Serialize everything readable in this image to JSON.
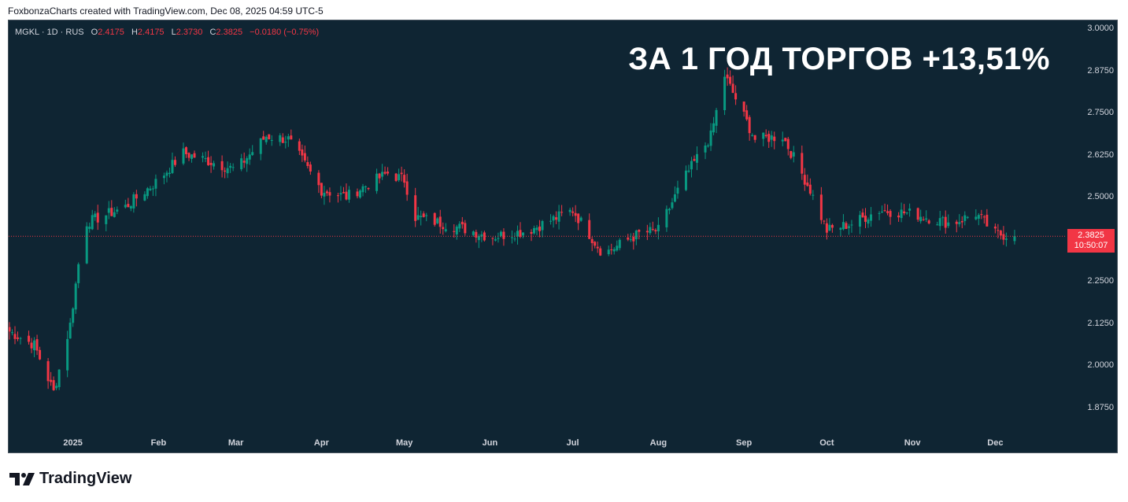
{
  "header": {
    "credit": "FoxbonzaCharts created with TradingView.com, Dec 08, 2025 04:59 UTC-5"
  },
  "legend": {
    "symbol": "MGKL · 1D · RUS",
    "open_label": "O",
    "open": "2.4175",
    "high_label": "H",
    "high": "2.4175",
    "low_label": "L",
    "low": "2.3730",
    "close_label": "C",
    "close": "2.3825",
    "change": "−0.0180 (−0.75%)"
  },
  "overlay_title": "ЗА 1 ГОД ТОРГОВ +13,51%",
  "last_price": {
    "price": "2.3825",
    "countdown": "10:50:07",
    "color": "#f23645"
  },
  "branding": {
    "logo_text": "TradingView"
  },
  "colors": {
    "background": "#0f2533",
    "up": "#089981",
    "down": "#f23645",
    "text": "#d1d4dc"
  },
  "chart_data": {
    "type": "candlestick",
    "symbol": "MGKL",
    "interval": "1D",
    "y_ticks": [
      "3.0000",
      "2.8750",
      "2.7500",
      "2.6250",
      "2.5000",
      "2.3750",
      "2.2500",
      "2.1250",
      "2.0000",
      "1.8750"
    ],
    "y_tick_values": [
      3.0,
      2.875,
      2.75,
      2.625,
      2.5,
      2.375,
      2.25,
      2.125,
      2.0,
      1.875
    ],
    "ylim": [
      1.81,
      3.01
    ],
    "x_ticks": [
      "2025",
      "Feb",
      "Mar",
      "Apr",
      "May",
      "Jun",
      "Jul",
      "Aug",
      "Sep",
      "Oct",
      "Nov",
      "Dec"
    ],
    "x_range": [
      "2024-12-09",
      "2025-12-18"
    ],
    "x_tick_dates": [
      "2025-01-01",
      "2025-02-01",
      "2025-03-01",
      "2025-04-01",
      "2025-05-01",
      "2025-06-01",
      "2025-07-01",
      "2025-08-01",
      "2025-09-01",
      "2025-10-01",
      "2025-11-01",
      "2025-12-01"
    ],
    "last_close": 2.3825,
    "key_points": [
      {
        "date": "2024-12-09",
        "price": 2.1
      },
      {
        "date": "2024-12-18",
        "price": 2.06
      },
      {
        "date": "2024-12-25",
        "price": 1.92
      },
      {
        "date": "2024-12-31",
        "price": 2.12
      },
      {
        "date": "2025-01-05",
        "price": 2.42
      },
      {
        "date": "2025-01-20",
        "price": 2.47
      },
      {
        "date": "2025-02-01",
        "price": 2.55
      },
      {
        "date": "2025-02-10",
        "price": 2.63
      },
      {
        "date": "2025-03-01",
        "price": 2.58
      },
      {
        "date": "2025-03-12",
        "price": 2.68
      },
      {
        "date": "2025-03-20",
        "price": 2.67
      },
      {
        "date": "2025-04-01",
        "price": 2.52
      },
      {
        "date": "2025-04-10",
        "price": 2.5
      },
      {
        "date": "2025-04-25",
        "price": 2.57
      },
      {
        "date": "2025-05-01",
        "price": 2.55
      },
      {
        "date": "2025-05-05",
        "price": 2.44
      },
      {
        "date": "2025-05-25",
        "price": 2.4
      },
      {
        "date": "2025-06-01",
        "price": 2.38
      },
      {
        "date": "2025-06-15",
        "price": 2.4
      },
      {
        "date": "2025-07-01",
        "price": 2.46
      },
      {
        "date": "2025-07-12",
        "price": 2.33
      },
      {
        "date": "2025-07-25",
        "price": 2.39
      },
      {
        "date": "2025-08-01",
        "price": 2.4
      },
      {
        "date": "2025-08-10",
        "price": 2.55
      },
      {
        "date": "2025-08-20",
        "price": 2.68
      },
      {
        "date": "2025-08-25",
        "price": 2.86
      },
      {
        "date": "2025-09-05",
        "price": 2.67
      },
      {
        "date": "2025-09-15",
        "price": 2.68
      },
      {
        "date": "2025-09-25",
        "price": 2.52
      },
      {
        "date": "2025-10-01",
        "price": 2.4
      },
      {
        "date": "2025-10-10",
        "price": 2.42
      },
      {
        "date": "2025-10-20",
        "price": 2.46
      },
      {
        "date": "2025-11-01",
        "price": 2.45
      },
      {
        "date": "2025-11-15",
        "price": 2.42
      },
      {
        "date": "2025-11-24",
        "price": 2.45
      },
      {
        "date": "2025-12-01",
        "price": 2.39
      },
      {
        "date": "2025-12-08",
        "price": 2.3825
      }
    ]
  }
}
